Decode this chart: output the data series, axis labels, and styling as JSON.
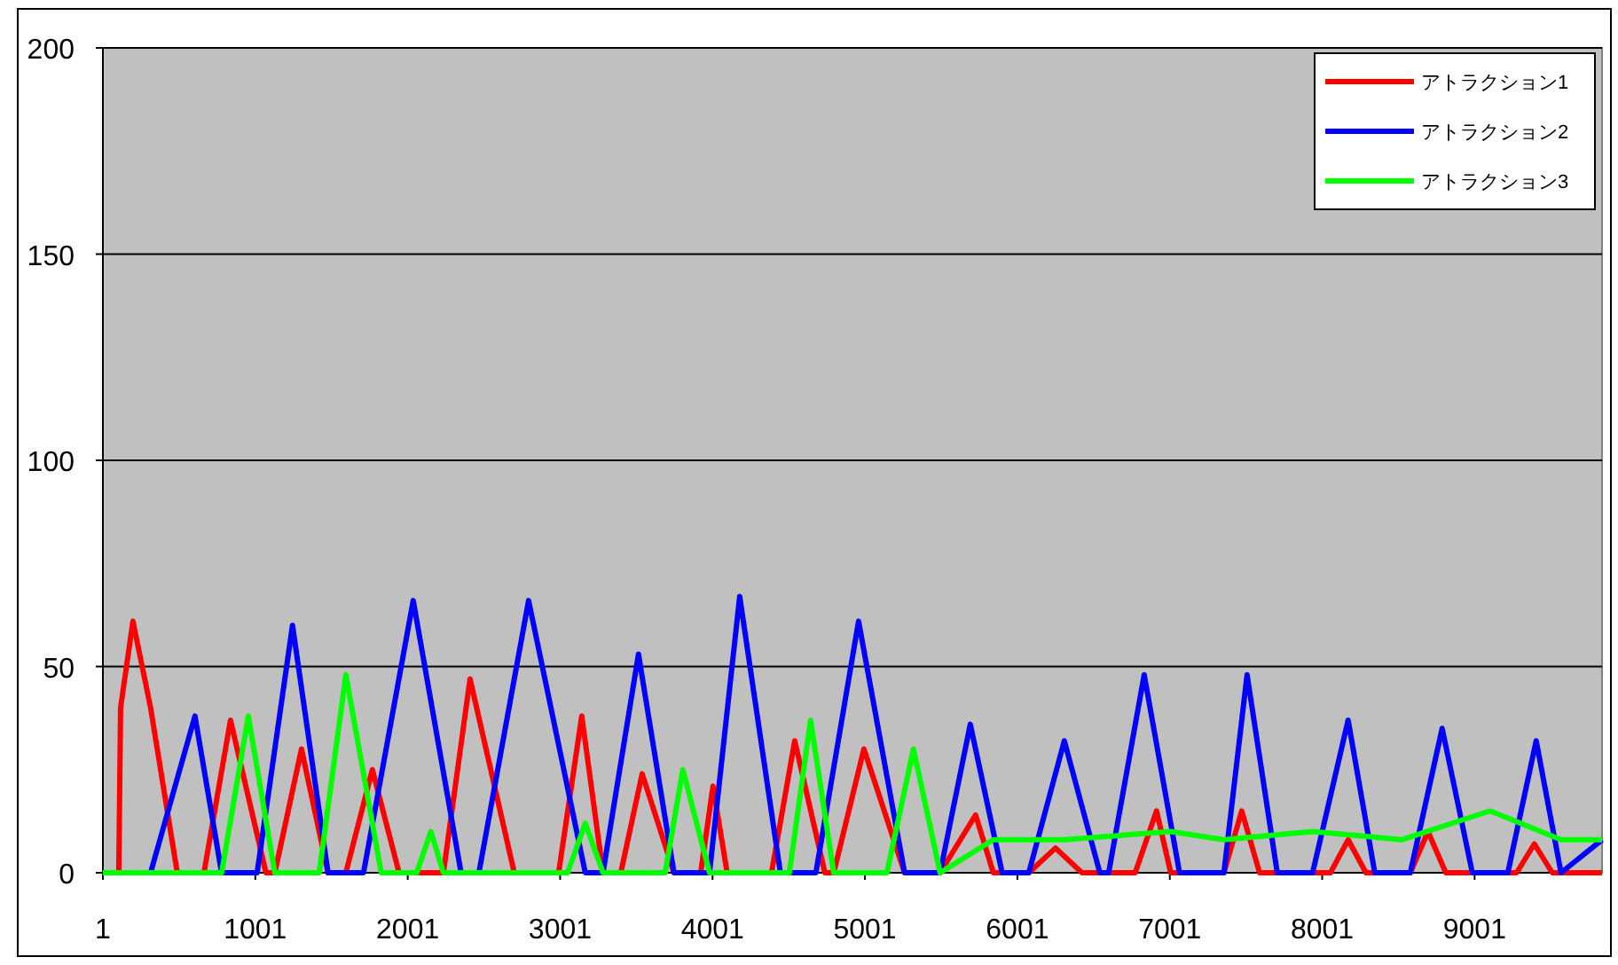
{
  "chart_data": {
    "type": "line",
    "series": [
      {
        "name": "アトラクション1",
        "color": "#ff0000",
        "x": [
          1,
          105,
          117,
          198,
          314,
          489,
          664,
          838,
          1071,
          1129,
          1304,
          1478,
          1595,
          1769,
          1944,
          2235,
          2410,
          2700,
          2991,
          3143,
          3282,
          3399,
          3539,
          3748,
          3923,
          4004,
          4097,
          4388,
          4540,
          4738,
          4796,
          4994,
          5261,
          5494,
          5727,
          5843,
          6076,
          6251,
          6425,
          6774,
          6914,
          7007,
          7356,
          7473,
          7590,
          8055,
          8171,
          8288,
          8579,
          8695,
          8812,
          9277,
          9393,
          9510,
          9837
        ],
        "values": [
          0,
          0,
          40,
          61,
          40,
          0,
          0,
          37,
          0,
          0,
          30,
          0,
          0,
          25,
          0,
          0,
          47,
          0,
          0,
          38,
          0,
          0,
          24,
          0,
          0,
          21,
          0,
          0,
          32,
          0,
          0,
          30,
          0,
          0,
          14,
          0,
          0,
          6,
          0,
          0,
          15,
          0,
          0,
          15,
          0,
          0,
          8,
          0,
          0,
          10,
          0,
          0,
          7,
          0,
          0
        ]
      },
      {
        "name": "アトラクション2",
        "color": "#0000ff",
        "x": [
          1,
          314,
          605,
          780,
          1013,
          1245,
          1478,
          1711,
          2037,
          2351,
          2468,
          2794,
          3166,
          3282,
          3515,
          3748,
          3981,
          4179,
          4446,
          4679,
          4959,
          5261,
          5494,
          5692,
          5901,
          6076,
          6309,
          6542,
          6600,
          6833,
          7065,
          7356,
          7508,
          7706,
          7938,
          8171,
          8346,
          8579,
          8788,
          8986,
          9219,
          9405,
          9568,
          9837
        ],
        "values": [
          0,
          0,
          38,
          0,
          0,
          60,
          0,
          0,
          66,
          0,
          0,
          66,
          0,
          0,
          53,
          0,
          0,
          67,
          0,
          0,
          61,
          0,
          0,
          36,
          0,
          0,
          32,
          0,
          0,
          48,
          0,
          0,
          48,
          0,
          0,
          37,
          0,
          0,
          35,
          0,
          0,
          32,
          0,
          8
        ]
      },
      {
        "name": "アトラクション3",
        "color": "#00ff00",
        "x": [
          1,
          780,
          955,
          1129,
          1420,
          1595,
          1827,
          2060,
          2153,
          2235,
          3050,
          3166,
          3282,
          3690,
          3806,
          3981,
          4505,
          4644,
          4796,
          5145,
          5319,
          5494,
          5843,
          6309,
          7007,
          7356,
          7938,
          8521,
          9103,
          9568,
          9837
        ],
        "values": [
          0,
          0,
          38,
          0,
          0,
          48,
          0,
          0,
          10,
          0,
          0,
          12,
          0,
          0,
          25,
          0,
          0,
          37,
          0,
          0,
          30,
          0,
          8,
          8,
          10,
          8,
          10,
          8,
          15,
          8,
          8
        ]
      }
    ],
    "xlim": [
      1,
      9837
    ],
    "xticks": [
      1,
      1001,
      2001,
      3001,
      4001,
      5001,
      6001,
      7001,
      8001,
      9001
    ],
    "ylim": [
      0,
      200
    ],
    "yticks": [
      0,
      50,
      100,
      150,
      200
    ],
    "grid": "y",
    "legend": "top right"
  }
}
